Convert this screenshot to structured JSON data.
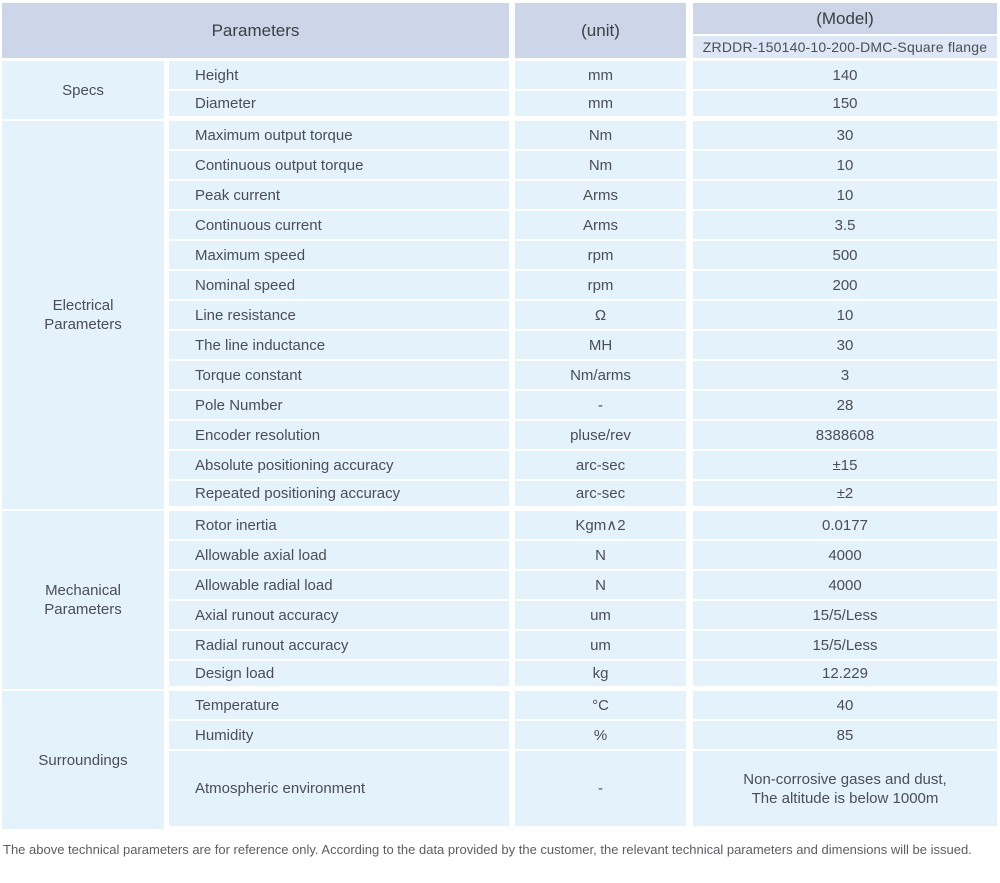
{
  "header": {
    "parameters_label": "Parameters",
    "unit_label": "(unit)",
    "model_label": "(Model)",
    "model_value": "ZRDDR-150140-10-200-DMC-Square flange"
  },
  "colors": {
    "header_bg": "#cdd5e9",
    "subheader_bg": "#dee7f6",
    "cell_bg": "#e4f2fb",
    "separator": "#ffffff",
    "header_text": "#3b3e45",
    "body_text": "#4a4e55",
    "footer_text": "#5a5d63"
  },
  "sections": [
    {
      "name": "Specs",
      "rows": [
        {
          "parameter": "Height",
          "unit": "mm",
          "value": "140"
        },
        {
          "parameter": "Diameter",
          "unit": "mm",
          "value": "150"
        }
      ]
    },
    {
      "name": "Electrical Parameters",
      "rows": [
        {
          "parameter": "Maximum output torque",
          "unit": "Nm",
          "value": "30"
        },
        {
          "parameter": "Continuous output torque",
          "unit": "Nm",
          "value": "10"
        },
        {
          "parameter": "Peak current",
          "unit": "Arms",
          "value": "10"
        },
        {
          "parameter": "Continuous current",
          "unit": "Arms",
          "value": "3.5"
        },
        {
          "parameter": "Maximum speed",
          "unit": "rpm",
          "value": "500"
        },
        {
          "parameter": "Nominal speed",
          "unit": "rpm",
          "value": "200"
        },
        {
          "parameter": "Line resistance",
          "unit": "Ω",
          "value": "10"
        },
        {
          "parameter": "The line inductance",
          "unit": "MH",
          "value": "30"
        },
        {
          "parameter": "Torque constant",
          "unit": "Nm/arms",
          "value": "3"
        },
        {
          "parameter": "Pole Number",
          "unit": "-",
          "value": "28"
        },
        {
          "parameter": "Encoder resolution",
          "unit": "pluse/rev",
          "value": "8388608"
        },
        {
          "parameter": "Absolute positioning accuracy",
          "unit": "arc-sec",
          "value": "±15"
        },
        {
          "parameter": "Repeated positioning accuracy",
          "unit": "arc-sec",
          "value": "±2"
        }
      ]
    },
    {
      "name": "Mechanical Parameters",
      "rows": [
        {
          "parameter": "Rotor inertia",
          "unit": "Kgm∧2",
          "value": "0.0177"
        },
        {
          "parameter": "Allowable axial load",
          "unit": "N",
          "value": "4000"
        },
        {
          "parameter": "Allowable radial load",
          "unit": "N",
          "value": "4000"
        },
        {
          "parameter": "Axial runout accuracy",
          "unit": "um",
          "value": "15/5/Less"
        },
        {
          "parameter": "Radial runout accuracy",
          "unit": "um",
          "value": "15/5/Less"
        },
        {
          "parameter": "Design load",
          "unit": "kg",
          "value": "12.229"
        }
      ]
    },
    {
      "name": "Surroundings",
      "rows": [
        {
          "parameter": "Temperature",
          "unit": "°C",
          "value": "40"
        },
        {
          "parameter": "Humidity",
          "unit": "%",
          "value": "85"
        },
        {
          "parameter": "Atmospheric environment",
          "unit": "-",
          "value_lines": [
            "Non-corrosive gases and dust,",
            "The altitude is below 1000m"
          ],
          "tall": true
        }
      ]
    }
  ],
  "footer": {
    "note": "The above technical parameters are for reference only. According to the data provided by the customer, the relevant technical parameters and dimensions will be issued."
  }
}
